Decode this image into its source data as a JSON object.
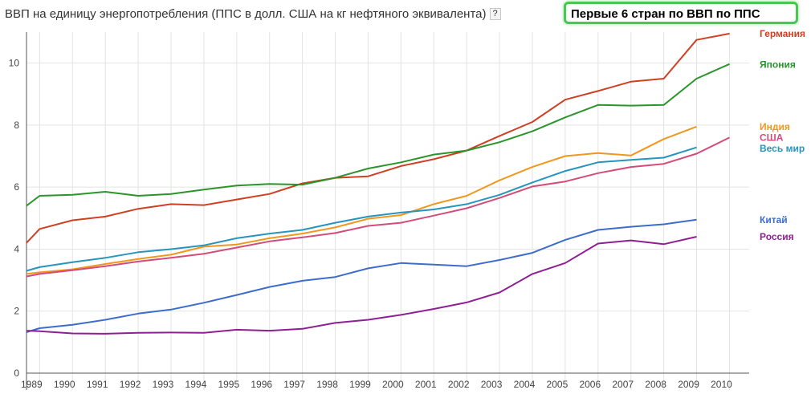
{
  "page": {
    "title": "ВВП на единицу энергопотребления (ППС в долл. США на кг нефтяного эквивалента)",
    "help_label": "?",
    "badge": "Первые 6 стран по ВВП по ППС"
  },
  "chart_data": {
    "type": "line",
    "title": "ВВП на единицу энергопотребления (ППС в долл. США на кг нефтяного эквивалента)",
    "xlabel": "",
    "ylabel": "",
    "x": [
      1988.6,
      1989,
      1990,
      1991,
      1992,
      1993,
      1994,
      1995,
      1996,
      1997,
      1998,
      1999,
      2000,
      2001,
      2002,
      2003,
      2004,
      2005,
      2006,
      2007,
      2008,
      2009,
      2010
    ],
    "xticks": [
      "1989",
      "1990",
      "1991",
      "1992",
      "1993",
      "1994",
      "1995",
      "1996",
      "1997",
      "1998",
      "1999",
      "2000",
      "2001",
      "2002",
      "2003",
      "2004",
      "2005",
      "2006",
      "2007",
      "2008",
      "2009",
      "2010"
    ],
    "xlim": [
      1988.6,
      2010.6
    ],
    "ylim": [
      0,
      11
    ],
    "yticks": [
      "0",
      "2",
      "4",
      "6",
      "8",
      "10"
    ],
    "grid": true,
    "legend": "right",
    "series": [
      {
        "name": "Германия",
        "color": "#cf3f22",
        "label_y": 10.95,
        "values": [
          4.2,
          4.65,
          4.93,
          5.05,
          5.3,
          5.45,
          5.42,
          5.6,
          5.78,
          6.12,
          6.3,
          6.35,
          6.68,
          6.9,
          7.18,
          7.65,
          8.1,
          8.82,
          9.1,
          9.4,
          9.5,
          10.75,
          10.95
        ]
      },
      {
        "name": "Япония",
        "color": "#2b942b",
        "label_y": 9.95,
        "values": [
          5.4,
          5.72,
          5.75,
          5.85,
          5.72,
          5.78,
          5.92,
          6.05,
          6.1,
          6.08,
          6.3,
          6.6,
          6.8,
          7.05,
          7.18,
          7.45,
          7.8,
          8.25,
          8.65,
          8.63,
          8.65,
          9.5,
          9.97
        ]
      },
      {
        "name": "Индия",
        "color": "#f0981e",
        "label_y": 7.95,
        "values": [
          3.2,
          3.25,
          3.35,
          3.52,
          3.68,
          3.82,
          4.08,
          4.15,
          4.35,
          4.5,
          4.7,
          4.98,
          5.1,
          5.45,
          5.72,
          6.22,
          6.65,
          7.0,
          7.1,
          7.02,
          7.55,
          7.95,
          null
        ]
      },
      {
        "name": "США",
        "color": "#d24b7b",
        "label_y": 7.6,
        "values": [
          3.12,
          3.2,
          3.32,
          3.45,
          3.6,
          3.72,
          3.85,
          4.05,
          4.25,
          4.38,
          4.52,
          4.75,
          4.85,
          5.08,
          5.32,
          5.65,
          6.02,
          6.18,
          6.45,
          6.65,
          6.75,
          7.08,
          7.6
        ]
      },
      {
        "name": "Весь мир",
        "color": "#2595bd",
        "label_y": 7.25,
        "values": [
          3.3,
          3.42,
          3.58,
          3.72,
          3.9,
          4.0,
          4.12,
          4.35,
          4.5,
          4.62,
          4.85,
          5.05,
          5.18,
          5.28,
          5.45,
          5.75,
          6.15,
          6.52,
          6.8,
          6.88,
          6.95,
          7.28,
          null
        ]
      },
      {
        "name": "Китай",
        "color": "#3d6ccb",
        "label_y": 4.95,
        "values": [
          1.32,
          1.45,
          1.56,
          1.72,
          1.92,
          2.05,
          2.27,
          2.52,
          2.78,
          2.98,
          3.1,
          3.38,
          3.55,
          3.5,
          3.45,
          3.65,
          3.88,
          4.3,
          4.62,
          4.72,
          4.8,
          4.95,
          null
        ]
      },
      {
        "name": "Россия",
        "color": "#8f1f94",
        "label_y": 4.4,
        "values": [
          1.37,
          1.35,
          1.28,
          1.27,
          1.3,
          1.31,
          1.3,
          1.4,
          1.37,
          1.43,
          1.62,
          1.72,
          1.88,
          2.07,
          2.28,
          2.6,
          3.2,
          3.55,
          4.18,
          4.28,
          4.16,
          4.4,
          null
        ]
      }
    ]
  }
}
